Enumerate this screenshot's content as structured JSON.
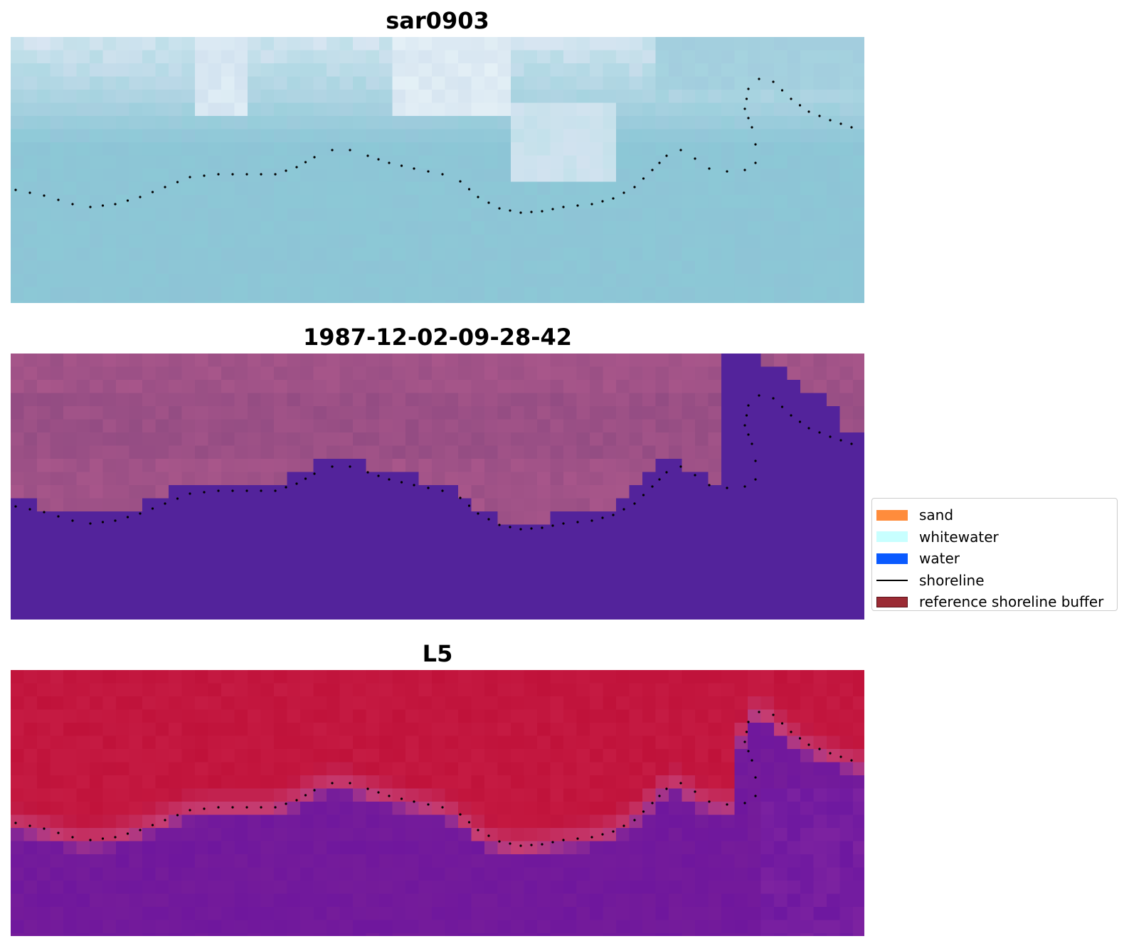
{
  "panels": [
    {
      "title": "sar0903",
      "style": "sar"
    },
    {
      "title": "1987-12-02-09-28-42",
      "style": "class"
    },
    {
      "title": "L5",
      "style": "index"
    }
  ],
  "legend": {
    "items": [
      {
        "label": "sand",
        "kind": "patch",
        "color": "#ff8c3c"
      },
      {
        "label": "whitewater",
        "kind": "patch",
        "color": "#c8ffff"
      },
      {
        "label": "water",
        "kind": "patch",
        "color": "#0a5aff"
      },
      {
        "label": "shoreline",
        "kind": "line",
        "color": "#000000"
      },
      {
        "label": "reference shoreline buffer",
        "kind": "patch",
        "color": "#9b2b34"
      }
    ]
  },
  "colors": {
    "sar_background": "#b8d4e0",
    "class_land": "#a8568a",
    "class_water": "#53239b",
    "index_land": "#c0123a",
    "index_water": "#751c9a",
    "shoreline_dots": "#000000"
  }
}
